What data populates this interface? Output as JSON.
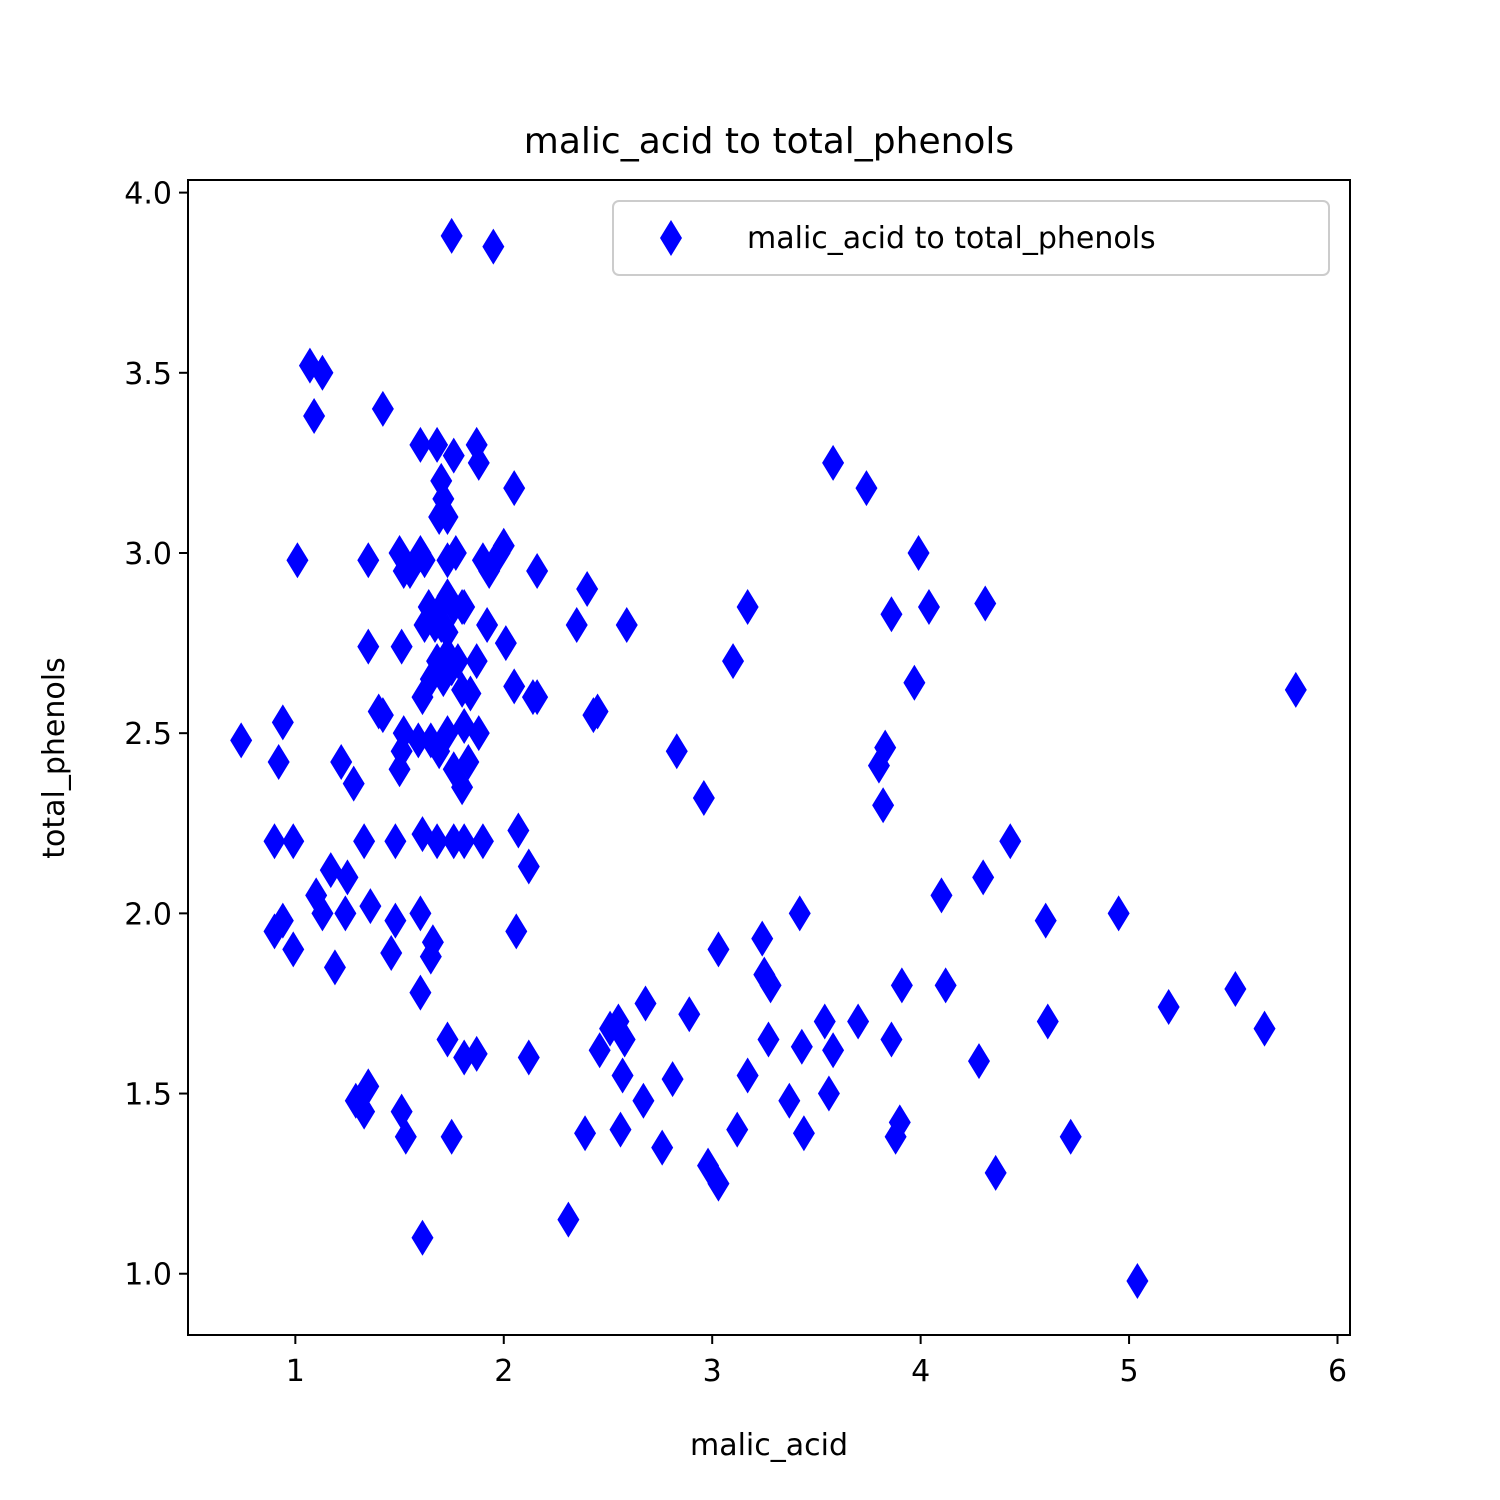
{
  "chart_data": {
    "type": "scatter",
    "title": "malic_acid to total_phenols",
    "xlabel": "malic_acid",
    "ylabel": "total_phenols",
    "xlim": [
      0.485,
      6.06
    ],
    "ylim": [
      0.83,
      4.035
    ],
    "xticks": [
      1,
      2,
      3,
      4,
      5,
      6
    ],
    "yticks": [
      1.0,
      1.5,
      2.0,
      2.5,
      3.0,
      3.5,
      4.0
    ],
    "grid": false,
    "legend": {
      "location": "upper right"
    },
    "marker": "diamond",
    "color": "#0000ff",
    "series": [
      {
        "name": "malic_acid to total_phenols",
        "points": [
          [
            1.75,
            3.88
          ],
          [
            1.95,
            3.85
          ],
          [
            1.07,
            3.52
          ],
          [
            1.13,
            3.5
          ],
          [
            1.09,
            3.38
          ],
          [
            1.42,
            3.4
          ],
          [
            1.6,
            3.3
          ],
          [
            1.68,
            3.3
          ],
          [
            1.76,
            3.27
          ],
          [
            1.87,
            3.3
          ],
          [
            1.88,
            3.25
          ],
          [
            2.05,
            3.18
          ],
          [
            1.7,
            3.2
          ],
          [
            1.71,
            3.15
          ],
          [
            1.69,
            3.1
          ],
          [
            1.73,
            3.1
          ],
          [
            1.01,
            2.98
          ],
          [
            1.35,
            2.98
          ],
          [
            1.5,
            3.0
          ],
          [
            1.52,
            2.95
          ],
          [
            1.55,
            2.95
          ],
          [
            1.6,
            3.0
          ],
          [
            1.62,
            2.98
          ],
          [
            1.73,
            2.98
          ],
          [
            1.77,
            3.0
          ],
          [
            1.9,
            2.98
          ],
          [
            1.93,
            2.95
          ],
          [
            1.98,
            3.0
          ],
          [
            2.0,
            3.02
          ],
          [
            2.16,
            2.95
          ],
          [
            1.35,
            2.74
          ],
          [
            1.51,
            2.74
          ],
          [
            1.62,
            2.8
          ],
          [
            1.64,
            2.85
          ],
          [
            1.67,
            2.8
          ],
          [
            1.7,
            2.85
          ],
          [
            1.73,
            2.88
          ],
          [
            1.76,
            2.85
          ],
          [
            1.8,
            2.85
          ],
          [
            1.81,
            2.85
          ],
          [
            1.73,
            2.78
          ],
          [
            1.7,
            2.8
          ],
          [
            1.92,
            2.8
          ],
          [
            2.01,
            2.75
          ],
          [
            1.4,
            2.56
          ],
          [
            1.42,
            2.55
          ],
          [
            1.61,
            2.6
          ],
          [
            1.65,
            2.65
          ],
          [
            1.68,
            2.7
          ],
          [
            1.71,
            2.65
          ],
          [
            1.73,
            2.72
          ],
          [
            1.75,
            2.68
          ],
          [
            1.78,
            2.7
          ],
          [
            1.8,
            2.62
          ],
          [
            1.84,
            2.61
          ],
          [
            1.87,
            2.7
          ],
          [
            2.05,
            2.63
          ],
          [
            2.14,
            2.6
          ],
          [
            2.16,
            2.6
          ],
          [
            1.52,
            2.5
          ],
          [
            1.51,
            2.45
          ],
          [
            1.59,
            2.48
          ],
          [
            1.65,
            2.48
          ],
          [
            1.69,
            2.45
          ],
          [
            1.73,
            2.5
          ],
          [
            1.76,
            2.4
          ],
          [
            1.81,
            2.52
          ],
          [
            1.83,
            2.42
          ],
          [
            1.88,
            2.5
          ],
          [
            1.8,
            2.35
          ],
          [
            1.5,
            2.4
          ],
          [
            1.22,
            2.42
          ],
          [
            1.28,
            2.36
          ],
          [
            0.74,
            2.48
          ],
          [
            0.94,
            2.53
          ],
          [
            0.92,
            2.42
          ],
          [
            0.9,
            2.2
          ],
          [
            0.99,
            2.2
          ],
          [
            1.33,
            2.2
          ],
          [
            1.48,
            2.2
          ],
          [
            1.61,
            2.22
          ],
          [
            1.68,
            2.2
          ],
          [
            1.76,
            2.2
          ],
          [
            1.81,
            2.2
          ],
          [
            1.9,
            2.2
          ],
          [
            1.1,
            2.05
          ],
          [
            1.13,
            2.0
          ],
          [
            1.17,
            2.12
          ],
          [
            1.25,
            2.1
          ],
          [
            1.24,
            2.0
          ],
          [
            1.36,
            2.02
          ],
          [
            1.48,
            1.98
          ],
          [
            1.6,
            2.0
          ],
          [
            0.9,
            1.95
          ],
          [
            0.94,
            1.98
          ],
          [
            0.99,
            1.9
          ],
          [
            1.19,
            1.85
          ],
          [
            1.46,
            1.89
          ],
          [
            1.66,
            1.92
          ],
          [
            1.65,
            1.88
          ],
          [
            1.6,
            1.78
          ],
          [
            1.73,
            1.65
          ],
          [
            1.81,
            1.6
          ],
          [
            1.87,
            1.61
          ],
          [
            1.29,
            1.48
          ],
          [
            1.33,
            1.45
          ],
          [
            1.35,
            1.52
          ],
          [
            1.51,
            1.45
          ],
          [
            1.53,
            1.38
          ],
          [
            1.75,
            1.38
          ],
          [
            1.61,
            1.1
          ],
          [
            2.07,
            2.23
          ],
          [
            2.12,
            2.13
          ],
          [
            2.06,
            1.95
          ],
          [
            2.12,
            1.6
          ],
          [
            2.35,
            2.8
          ],
          [
            2.4,
            2.9
          ],
          [
            2.43,
            2.55
          ],
          [
            2.45,
            2.56
          ],
          [
            2.59,
            2.8
          ],
          [
            2.31,
            1.15
          ],
          [
            2.39,
            1.39
          ],
          [
            2.46,
            1.62
          ],
          [
            2.51,
            1.68
          ],
          [
            2.55,
            1.7
          ],
          [
            2.58,
            1.65
          ],
          [
            2.57,
            1.55
          ],
          [
            2.56,
            1.4
          ],
          [
            2.68,
            1.75
          ],
          [
            2.67,
            1.48
          ],
          [
            2.76,
            1.35
          ],
          [
            2.81,
            1.54
          ],
          [
            2.89,
            1.72
          ],
          [
            2.83,
            2.45
          ],
          [
            2.96,
            2.32
          ],
          [
            2.98,
            1.3
          ],
          [
            3.03,
            1.25
          ],
          [
            3.03,
            1.9
          ],
          [
            3.1,
            2.7
          ],
          [
            3.12,
            1.4
          ],
          [
            3.17,
            2.85
          ],
          [
            3.17,
            1.55
          ],
          [
            3.24,
            1.93
          ],
          [
            3.25,
            1.83
          ],
          [
            3.28,
            1.8
          ],
          [
            3.27,
            1.65
          ],
          [
            3.37,
            1.48
          ],
          [
            3.42,
            2.0
          ],
          [
            3.43,
            1.63
          ],
          [
            3.44,
            1.39
          ],
          [
            3.54,
            1.7
          ],
          [
            3.56,
            1.5
          ],
          [
            3.58,
            1.62
          ],
          [
            3.58,
            3.25
          ],
          [
            3.7,
            1.7
          ],
          [
            3.74,
            3.18
          ],
          [
            3.8,
            2.41
          ],
          [
            3.83,
            2.46
          ],
          [
            3.82,
            2.3
          ],
          [
            3.86,
            2.83
          ],
          [
            3.86,
            1.65
          ],
          [
            3.88,
            1.38
          ],
          [
            3.9,
            1.42
          ],
          [
            3.91,
            1.8
          ],
          [
            3.97,
            2.64
          ],
          [
            3.99,
            3.0
          ],
          [
            4.04,
            2.85
          ],
          [
            4.1,
            2.05
          ],
          [
            4.12,
            1.8
          ],
          [
            4.28,
            1.59
          ],
          [
            4.3,
            2.1
          ],
          [
            4.31,
            2.86
          ],
          [
            4.36,
            1.28
          ],
          [
            4.43,
            2.2
          ],
          [
            4.6,
            1.98
          ],
          [
            4.61,
            1.7
          ],
          [
            4.72,
            1.38
          ],
          [
            4.95,
            2.0
          ],
          [
            5.04,
            0.98
          ],
          [
            5.19,
            1.74
          ],
          [
            5.51,
            1.79
          ],
          [
            5.65,
            1.68
          ],
          [
            5.8,
            2.62
          ]
        ]
      }
    ]
  }
}
